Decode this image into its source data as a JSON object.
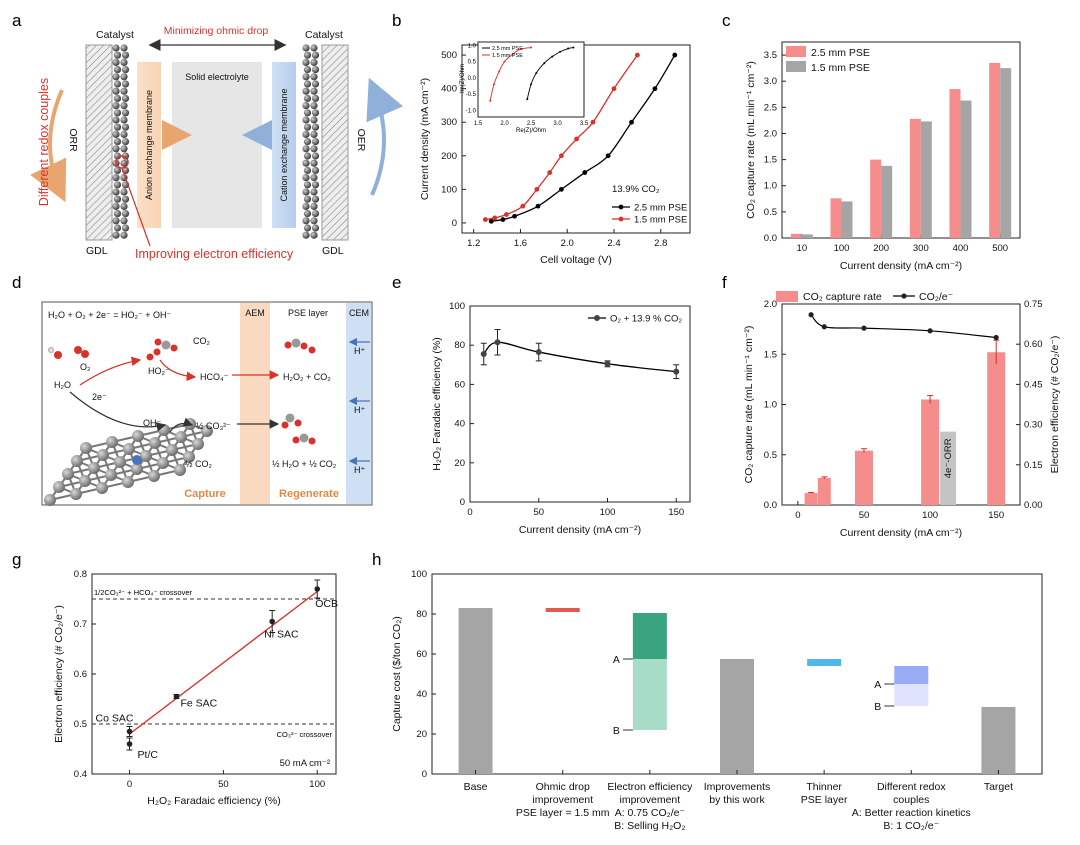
{
  "panels": {
    "a": {
      "label": "a",
      "catalyst_left": "Catalyst",
      "catalyst_right": "Catalyst",
      "top_arrow": "Minimizing ohmic drop",
      "solid_electrolyte": "Solid electrolyte",
      "aem": "Anion exchange membrane",
      "cem": "Cation exchange membrane",
      "orr": "ORR",
      "oer": "OER",
      "redox": "Different redox couples",
      "gdl_left": "GDL",
      "gdl_right": "GDL",
      "electron": "Improving electron efficiency"
    },
    "d": {
      "label": "d",
      "equation": "H₂O + O₂ + 2e⁻ = HO₂⁻ + OH⁻",
      "aem": "AEM",
      "pse": "PSE layer",
      "cem": "CEM",
      "co2": "CO₂",
      "o2": "O₂",
      "h2o": "H₂O",
      "ho2": "HO₂⁻",
      "hco4": "HCO₄⁻",
      "h2o2co2": "H₂O₂ + CO₂",
      "two_e": "2e⁻",
      "oh": "OH⁻",
      "half_co3": "½ CO₃²⁻",
      "half_co2": "½ CO₂",
      "half_h2o": "½ H₂O + ½ CO₂",
      "hplus": "H⁺",
      "capture": "Capture",
      "regenerate": "Regenerate"
    }
  },
  "chart_data": [
    {
      "panel": "b",
      "type": "line",
      "xlabel": "Cell voltage (V)",
      "ylabel": "Current density (mA cm⁻²)",
      "xlim": [
        1.1,
        3.05
      ],
      "ylim": [
        -30,
        530
      ],
      "xticks": [
        "1.2",
        "1.6",
        "2.0",
        "2.4",
        "2.8"
      ],
      "yticks": [
        "0",
        "100",
        "200",
        "300",
        "400",
        "500"
      ],
      "annotation": "13.9% CO₂",
      "legend_position": "bottom-right",
      "series": [
        {
          "name": "2.5 mm PSE",
          "color": "#000000",
          "x": [
            1.35,
            1.45,
            1.55,
            1.75,
            1.95,
            2.15,
            2.35,
            2.55,
            2.75,
            2.92
          ],
          "y": [
            5,
            10,
            20,
            50,
            100,
            150,
            200,
            300,
            400,
            500
          ]
        },
        {
          "name": "1.5 mm PSE",
          "color": "#d9322a",
          "x": [
            1.3,
            1.38,
            1.48,
            1.62,
            1.74,
            1.85,
            1.95,
            2.08,
            2.22,
            2.4,
            2.6
          ],
          "y": [
            10,
            15,
            25,
            50,
            100,
            150,
            200,
            250,
            300,
            400,
            500
          ]
        }
      ],
      "inset": {
        "xlabel": "Re(Z)/Ohm",
        "ylabel": "-Im(Z)/Ohm",
        "xticks": [
          "1.5",
          "2.0",
          "2.5",
          "3.0",
          "3.5"
        ],
        "yticks": [
          "-1.0",
          "-0.5",
          "0.0",
          "0.5",
          "1.0"
        ],
        "xlim": [
          1.5,
          3.5
        ],
        "ylim": [
          -1.2,
          1.1
        ],
        "series": [
          {
            "name": "2.5 mm PSE",
            "color": "#000000",
            "x": [
              2.43,
              2.5,
              2.6,
              2.75,
              2.9,
              3.05,
              3.2,
              3.3
            ],
            "y": [
              -0.65,
              -0.2,
              0.15,
              0.45,
              0.65,
              0.8,
              0.9,
              0.93
            ]
          },
          {
            "name": "1.5 mm PSE",
            "color": "#d9322a",
            "x": [
              1.73,
              1.8,
              1.9,
              2.0,
              2.15,
              2.3,
              2.5
            ],
            "y": [
              -0.7,
              -0.2,
              0.2,
              0.5,
              0.72,
              0.88,
              0.93
            ]
          }
        ]
      }
    },
    {
      "panel": "c",
      "type": "bar",
      "xlabel": "Current density (mA cm⁻²)",
      "ylabel": "CO₂ capture rate (mL min⁻¹ cm⁻²)",
      "ylim": [
        0,
        3.75
      ],
      "categories": [
        "10",
        "100",
        "200",
        "300",
        "400",
        "500"
      ],
      "yticks": [
        "0.0",
        "0.5",
        "1.0",
        "1.5",
        "2.0",
        "2.5",
        "3.0",
        "3.5"
      ],
      "legend_position": "top-left",
      "series": [
        {
          "name": "2.5 mm PSE",
          "color": "#f58d8d",
          "values": [
            0.08,
            0.76,
            1.5,
            2.28,
            2.85,
            3.35
          ]
        },
        {
          "name": "1.5 mm PSE",
          "color": "#a5a5a5",
          "values": [
            0.07,
            0.7,
            1.38,
            2.23,
            2.63,
            3.25
          ]
        }
      ]
    },
    {
      "panel": "e",
      "type": "line",
      "xlabel": "Current density (mA cm⁻²)",
      "ylabel": "H₂O₂ Faradaic efficiency (%)",
      "xlim": [
        0,
        160
      ],
      "ylim": [
        0,
        100
      ],
      "xticks": [
        "0",
        "50",
        "100",
        "150"
      ],
      "yticks": [
        "0",
        "20",
        "40",
        "60",
        "80",
        "100"
      ],
      "legend_position": "top-right",
      "series": [
        {
          "name": "O₂ + 13.9 % CO₂",
          "color": "#000000",
          "x": [
            10,
            20,
            50,
            100,
            150
          ],
          "y": [
            75.5,
            81.5,
            76.5,
            70.5,
            66.5
          ],
          "err": [
            5.5,
            6.5,
            4.5,
            1.5,
            3.5
          ]
        }
      ]
    },
    {
      "panel": "f",
      "type": "bar",
      "xlabel": "Current density (mA cm⁻²)",
      "ylabel": "CO₂ capture rate (mL min⁻¹ cm⁻²)",
      "y2label": "Electron efficiency (# CO₂/e⁻)",
      "xlim": [
        -12,
        168
      ],
      "ylim": [
        0,
        2.0
      ],
      "y2lim": [
        0,
        0.75
      ],
      "xticks": [
        "0",
        "50",
        "100",
        "150"
      ],
      "yticks": [
        "0.0",
        "0.5",
        "1.0",
        "1.5",
        "2.0"
      ],
      "y2ticks": [
        "0.00",
        "0.15",
        "0.30",
        "0.45",
        "0.60",
        "0.75"
      ],
      "legend_position": "top",
      "bars": {
        "name": "CO₂ capture rate",
        "color": "#f58d8d",
        "x": [
          10,
          20,
          50,
          100,
          150
        ],
        "values": [
          0.12,
          0.27,
          0.54,
          1.05,
          1.52
        ],
        "err": [
          0.005,
          0.01,
          0.02,
          0.04,
          0.12
        ]
      },
      "gray_bar": {
        "label": "4e⁻-ORR",
        "color": "#c4c4c4",
        "x": 100,
        "value": 0.73
      },
      "line": {
        "name": "CO₂/e⁻",
        "color": "#000000",
        "x": [
          10,
          20,
          50,
          100,
          150
        ],
        "y": [
          0.71,
          0.665,
          0.66,
          0.65,
          0.625
        ]
      }
    },
    {
      "panel": "g",
      "type": "scatter",
      "xlabel": "H₂O₂ Faradaic efficiency (%)",
      "ylabel": "Electron efficiency (# CO₂/e⁻)",
      "xlim": [
        -20,
        110
      ],
      "ylim": [
        0.4,
        0.8
      ],
      "xticks": [
        "0",
        "50",
        "100"
      ],
      "yticks": [
        "0.4",
        "0.5",
        "0.6",
        "0.7",
        "0.8"
      ],
      "annotation": "50 mA cm⁻²",
      "reference_lines": [
        {
          "y": 0.75,
          "label": "1/2CO₃²⁻ + HCO₄⁻ crossover"
        },
        {
          "y": 0.5,
          "label": "CO₃²⁻ crossover"
        }
      ],
      "points": [
        {
          "label": "Pt/C",
          "x": 0,
          "y": 0.46,
          "err": 0.012
        },
        {
          "label": "Co SAC",
          "x": 0,
          "y": 0.485,
          "err": 0.01
        },
        {
          "label": "Fe SAC",
          "x": 25,
          "y": 0.555,
          "err": 0.004
        },
        {
          "label": "Ni SAC",
          "x": 76,
          "y": 0.705,
          "err": 0.022
        },
        {
          "label": "OCB",
          "x": 100,
          "y": 0.77,
          "err": 0.018
        }
      ],
      "fit_line": {
        "color": "#d9322a",
        "x": [
          0,
          100
        ],
        "y": [
          0.48,
          0.765
        ]
      }
    },
    {
      "panel": "h",
      "type": "bar",
      "ylabel": "Capture cost ($/ton CO₂)",
      "ylim": [
        0,
        100
      ],
      "yticks": [
        "0",
        "20",
        "40",
        "60",
        "80",
        "100"
      ],
      "categories": [
        {
          "lines": [
            "Base"
          ]
        },
        {
          "lines": [
            "Ohmic drop",
            "improvement",
            "PSE layer = 1.5 mm"
          ]
        },
        {
          "lines": [
            "Electron efficiency",
            "improvement",
            "A: 0.75 CO₂/e⁻",
            "B: Selling H₂O₂"
          ]
        },
        {
          "lines": [
            "Improvements",
            "by this work"
          ]
        },
        {
          "lines": [
            "Thinner",
            "PSE layer"
          ]
        },
        {
          "lines": [
            "Different redox",
            "couples",
            "A: Better reaction kinetics",
            "B: 1 CO₂/e⁻"
          ]
        },
        {
          "lines": [
            "Target"
          ]
        }
      ],
      "bars": [
        {
          "from": 0,
          "to": 83,
          "color": "#a5a5a5"
        },
        {
          "from": 81,
          "to": 83,
          "color": "#e05a52"
        },
        {
          "from": 57.5,
          "to": 80.5,
          "color": "#3aa37f",
          "segment": "A"
        },
        {
          "from": 22,
          "to": 57.5,
          "color": "#a7dcc6",
          "segment": "B"
        },
        {
          "from": 0,
          "to": 57.5,
          "color": "#a5a5a5"
        },
        {
          "from": 54,
          "to": 57.5,
          "color": "#4fb8e8"
        },
        {
          "from": 45,
          "to": 54,
          "color": "#9aaaf6",
          "segment": "A"
        },
        {
          "from": 34,
          "to": 45,
          "color": "#dfe4fc",
          "segment": "B"
        },
        {
          "from": 0,
          "to": 33.5,
          "color": "#a5a5a5"
        }
      ],
      "markers": [
        {
          "label": "A",
          "category": 2,
          "y": 57.5
        },
        {
          "label": "B",
          "category": 2,
          "y": 22
        },
        {
          "label": "A",
          "category": 5,
          "y": 45
        },
        {
          "label": "B",
          "category": 5,
          "y": 34
        }
      ]
    }
  ]
}
